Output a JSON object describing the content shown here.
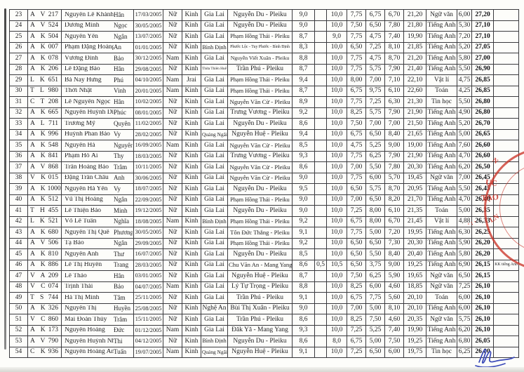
{
  "stamp": {
    "color": "#cb3429",
    "fragments": [
      "N",
      "ỤC",
      "TẠO",
      "LN",
      "·:·"
    ]
  },
  "signature": {
    "color": "#3a49b8"
  },
  "table": {
    "rows": [
      [
        "23",
        "A V",
        "217",
        "Nguyễn Lê Khánh",
        "Hân",
        "17/03/2005",
        "Nữ",
        "Kinh",
        "Gia Lai",
        "Nguyễn Du - Pleiku",
        "9,0",
        "",
        "10,0",
        "7,75",
        "6,75",
        "6,70",
        "21,20",
        "Ngữ văn",
        "6,00",
        "27,20",
        ""
      ],
      [
        "24",
        "A V",
        "524",
        "Dương Minh",
        "Ngọc",
        "30/05/2005",
        "Nữ",
        "Kinh",
        "Gia Lai",
        "Nguyễn Du - Pleiku",
        "9,0",
        "",
        "10,0",
        "7,50",
        "6,50",
        "7,80",
        "21,80",
        "Tiếng Anh",
        "5,30",
        "27,10",
        ""
      ],
      [
        "25",
        "A K",
        "504",
        "Nguyễn Yến",
        "Ngân",
        "13/07/2005",
        "Nữ",
        "Kinh",
        "Gia Lai",
        "Phạm Hồng Thái - Pleiku",
        "8,7",
        "",
        "9,0",
        "7,75",
        "4,75",
        "7,40",
        "19,90",
        "Tiếng Anh",
        "7,20",
        "27,10",
        ""
      ],
      [
        "26",
        "A K",
        "007",
        "Phạm Đặng Hoàng",
        "An",
        "01/01/2005",
        "Nữ",
        "Kinh",
        "Bình Định",
        "Phước Lộc - Tuy Phước - Bình Định",
        "8,3",
        "",
        "10,0",
        "6,50",
        "7,25",
        "8,10",
        "21,85",
        "Tiếng Anh",
        "5,20",
        "27,05",
        ""
      ],
      [
        "27",
        "A K",
        "078",
        "Vương Đình",
        "Bảo",
        "30/12/2005",
        "Nam",
        "Kinh",
        "Gia Lai",
        "Nguyễn Viết Xuân - Pleiku",
        "8,8",
        "",
        "10,0",
        "7,75",
        "4,75",
        "8,70",
        "21,20",
        "Tiếng Anh",
        "5,80",
        "27,00",
        ""
      ],
      [
        "28",
        "A K",
        "206",
        "Lê Đặng Bảo",
        "Hân",
        "29/08/2005",
        "Nữ",
        "Kinh",
        "Thừa Thiên Huế",
        "Trần Phú - Pleiku",
        "8,7",
        "",
        "10,0",
        "7,75",
        "5,75",
        "7,90",
        "21,40",
        "Tiếng Anh",
        "5,50",
        "26,90",
        ""
      ],
      [
        "29",
        "L K",
        "651",
        "Bá Nay Hưng",
        "Phú",
        "04/10/2005",
        "Nam",
        "Jrai",
        "Gia Lai",
        "Phạm Hồng Thái - Pleiku",
        "9,4",
        "",
        "10,0",
        "8,00",
        "7,00",
        "7,10",
        "22,10",
        "Vật lí",
        "4,75",
        "26,85",
        ""
      ],
      [
        "30",
        "T L",
        "980",
        "Thời Nhật",
        "Vinh",
        "20/01/2005",
        "Nam",
        "Kinh",
        "Gia Lai",
        "Phạm Hồng Thái - Pleiku",
        "8,7",
        "",
        "10,0",
        "6,75",
        "9,75",
        "6,10",
        "22,60",
        "Toán",
        "4,25",
        "26,85",
        ""
      ],
      [
        "31",
        "C T",
        "208",
        "Lê Nguyễn Ngọc",
        "Hân",
        "10/02/2005",
        "Nữ",
        "Kinh",
        "Gia Lai",
        "Nguyễn Văn Cừ - Pleiku",
        "8,9",
        "",
        "10,0",
        "7,75",
        "7,25",
        "6,30",
        "21,30",
        "Tin học",
        "5,50",
        "26,80",
        ""
      ],
      [
        "32",
        "A K",
        "665",
        "Nguyễn Huỳnh Diễm",
        "Phúc",
        "08/01/2005",
        "Nữ",
        "Kinh",
        "Gia Lai",
        "Trưng Vương - Pleiku",
        "9,2",
        "",
        "10,0",
        "8,25",
        "5,75",
        "7,90",
        "21,90",
        "Tiếng Anh",
        "4,90",
        "26,80",
        ""
      ],
      [
        "33",
        "A L",
        "711",
        "Trương Mỹ",
        "Quyên",
        "11/02/2005",
        "Nữ",
        "Kinh",
        "Gia Lai",
        "Nguyễn Du - Pleiku",
        "8,6",
        "",
        "10,0",
        "7,50",
        "7,00",
        "7,00",
        "21,50",
        "Tiếng Anh",
        "5,20",
        "26,70",
        ""
      ],
      [
        "34",
        "A K",
        "996",
        "Huỳnh Phan Bảo",
        "Vy",
        "28/02/2005",
        "Nữ",
        "Kinh",
        "Quảng Ngãi",
        "Nguyễn Huệ - Pleiku",
        "9,4",
        "",
        "10,0",
        "6,75",
        "6,50",
        "8,40",
        "21,65",
        "Tiếng Anh",
        "5,00",
        "26,65",
        ""
      ],
      [
        "35",
        "A K",
        "548",
        "Nguyễn Hà",
        "Nguyên",
        "16/09/2005",
        "Nam",
        "Kinh",
        "Gia Lai",
        "Nguyễn Văn Cừ - Pleiku",
        "8,5",
        "",
        "10,0",
        "4,75",
        "5,25",
        "9,00",
        "19,00",
        "Tiếng Anh",
        "7,60",
        "26,60",
        ""
      ],
      [
        "36",
        "A K",
        "841",
        "Phạm Hồ Ái",
        "Thy",
        "18/03/2005",
        "Nữ",
        "Kinh",
        "Gia Lai",
        "Trưng Vương - Pleiku",
        "9,3",
        "",
        "10,0",
        "7,75",
        "6,25",
        "7,90",
        "21,90",
        "Tiếng Anh",
        "4,70",
        "26,60",
        ""
      ],
      [
        "37",
        "A V",
        "868",
        "Trần Hoàng Bảo",
        "Trâm",
        "10/11/2005",
        "Nữ",
        "Kinh",
        "Gia Lai",
        "Nguyễn Văn Cừ - Pleiku",
        "8,6",
        "",
        "10,0",
        "7,00",
        "5,50",
        "7,80",
        "20,30",
        "Tiếng Anh",
        "6,20",
        "26,50",
        ""
      ],
      [
        "38",
        "V K",
        "015",
        "Đặng Trần Châu",
        "Anh",
        "30/06/2005",
        "Nữ",
        "Kinh",
        "Gia Lai",
        "Nguyễn Văn Cừ - Pleiku",
        "9,0",
        "",
        "10,0",
        "7,75",
        "6,00",
        "5,70",
        "19,45",
        "Ngữ văn",
        "7,00",
        "26,45",
        ""
      ],
      [
        "39",
        "A K",
        "1000",
        "Nguyễn Hà Yến",
        "Vy",
        "18/07/2005",
        "Nữ",
        "Kinh",
        "Gia Lai",
        "Nguyễn Du - Pleiku",
        "9,5",
        "",
        "10,0",
        "6,50",
        "5,75",
        "8,70",
        "20,95",
        "Tiếng Anh",
        "5,50",
        "26,45",
        ""
      ],
      [
        "40",
        "A K",
        "512",
        "Vũ Thị Hoàng",
        "Ngân",
        "22/09/2005",
        "Nữ",
        "Kinh",
        "Gia Lai",
        "Phạm Hồng Thái - Pleiku",
        "9,0",
        "",
        "10,0",
        "7,00",
        "6,50",
        "8,20",
        "21,70",
        "Tiếng Anh",
        "4,70",
        "26,40",
        ""
      ],
      [
        "41",
        "T H",
        "455",
        "Lê Thiện Bảo",
        "Minh",
        "19/12/2005",
        "Nữ",
        "Kinh",
        "Gia Lai",
        "Nguyễn Du - Pleiku",
        "9,0",
        "",
        "10,0",
        "7,25",
        "8,00",
        "6,10",
        "21,35",
        "Toán",
        "5,00",
        "26,35",
        ""
      ],
      [
        "42",
        "L K",
        "521",
        "Võ Lê Tuấn",
        "Nghĩa",
        "18/08/2005",
        "Nam",
        "Kinh",
        "Bình Định",
        "Phạm Hồng Thái - Pleiku",
        "9,2",
        "",
        "10,0",
        "6,75",
        "8,00",
        "6,70",
        "21,45",
        "Vật lí",
        "4,88",
        "26,33",
        ""
      ],
      [
        "43",
        "A K",
        "680",
        "Nguyễn Thị Quế",
        "Phương",
        "30/05/2005",
        "Nữ",
        "Kinh",
        "Gia Lai",
        "Tôn Đức Thắng - Pleiku",
        "9,1",
        "",
        "10,0",
        "7,75",
        "5,00",
        "7,20",
        "19,95",
        "Tiếng Anh",
        "6,30",
        "26,25",
        ""
      ],
      [
        "44",
        "A V",
        "506",
        "Tạ Bảo",
        "Ngân",
        "29/09/2005",
        "Nữ",
        "Kinh",
        "Gia Lai",
        "Phạm Hồng Thái - Pleiku",
        "9,2",
        "",
        "10,0",
        "6,50",
        "6,50",
        "7,30",
        "20,30",
        "Tiếng Anh",
        "5,90",
        "26,20",
        ""
      ],
      [
        "45",
        "A K",
        "810",
        "Nguyễn Anh",
        "Thư",
        "16/07/2005",
        "Nữ",
        "Kinh",
        "Gia Lai",
        "Nguyễn Du - Pleiku",
        "8,5",
        "",
        "10,0",
        "6,50",
        "5,50",
        "8,40",
        "20,40",
        "Tiếng Anh",
        "5,80",
        "26,20",
        ""
      ],
      [
        "46",
        "A K",
        "886",
        "Lê Thị Huyền",
        "Trang",
        "28/03/2005",
        "Nữ",
        "Kinh",
        "Gia Lai",
        "Chu Văn An - Mang Yang",
        "8,6",
        "0,5",
        "10,5",
        "6,50",
        "3,75",
        "9,00",
        "19,25",
        "Tiếng Anh",
        "6,90",
        "26,15",
        "KK tiếng Anh"
      ],
      [
        "47",
        "V A",
        "209",
        "Lê Thảo",
        "Hân",
        "03/01/2005",
        "Nữ",
        "Kinh",
        "Gia Lai",
        "Nguyễn Huệ - Pleiku",
        "8,7",
        "",
        "10,0",
        "7,50",
        "6,25",
        "5,90",
        "19,65",
        "Ngữ văn",
        "6,50",
        "26,15",
        ""
      ],
      [
        "48",
        "V C",
        "074",
        "Trịnh Thái",
        "Bảo",
        "04/07/2005",
        "Nam",
        "Kinh",
        "Gia Lai",
        "Lý Tự Trọng - Pleiku",
        "8,8",
        "",
        "10,0",
        "8,25",
        "6,00",
        "4,60",
        "18,85",
        "Ngữ văn",
        "7,25",
        "26,10",
        ""
      ],
      [
        "49",
        "T S",
        "744",
        "Hà Thị Minh",
        "Tâm",
        "25/11/2005",
        "Nữ",
        "Kinh",
        "Gia Lai",
        "Trần Phú - Pleiku",
        "9,1",
        "",
        "10,0",
        "6,75",
        "7,75",
        "5,60",
        "20,10",
        "Toán",
        "6,00",
        "26,10",
        ""
      ],
      [
        "50",
        "A K",
        "326",
        "Nguyễn Thị",
        "Huyền",
        "25/08/2005",
        "Nữ",
        "Kinh",
        "Nghệ An",
        "Bùi Thị Xuân - Pleiku",
        "9,0",
        "",
        "10,0",
        "7,00",
        "5,00",
        "8,10",
        "20,10",
        "Tiếng Anh",
        "6,00",
        "26,10",
        ""
      ],
      [
        "51",
        "V C",
        "860",
        "Mai Đoàn Thùy",
        "Trâm",
        "15/11/2005",
        "Nữ",
        "Kinh",
        "Gia Lai",
        "Trần Phú - Pleiku",
        "8,6",
        "",
        "10,0",
        "8,25",
        "7,50",
        "4,60",
        "20,35",
        "Ngữ văn",
        "5,75",
        "26,10",
        ""
      ],
      [
        "52",
        "A K",
        "173",
        "Nguyễn Hoàng",
        "Đức",
        "01/12/2005",
        "Nam",
        "Kinh",
        "Gia Lai",
        "Đăk Yă - Mang Yang",
        "9,3",
        "",
        "10,0",
        "7,25",
        "5,25",
        "7,40",
        "19,90",
        "Tiếng Anh",
        "6,20",
        "26,10",
        ""
      ],
      [
        "53",
        "A V",
        "790",
        "Nguyễn Huỳnh Nhật",
        "Thi",
        "04/12/2005",
        "Nữ",
        "Kinh",
        "Bình Định",
        "Nguyễn Du - Pleiku",
        "8,6",
        "",
        "8,0",
        "6,75",
        "5,00",
        "7,50",
        "19,25",
        "Tiếng Anh",
        "6,80",
        "26,05",
        ""
      ],
      [
        "54",
        "C K",
        "936",
        "Nguyễn Hoàng Anh",
        "Tuấn",
        "19/07/2005",
        "Nam",
        "Kinh",
        "Quảng Ngãi",
        "Nguyễn Huệ - Pleiku",
        "9,1",
        "",
        "10,0",
        "7,25",
        "6,50",
        "6,00",
        "19,75",
        "Tin học",
        "6,25",
        "26,00",
        ""
      ]
    ]
  }
}
